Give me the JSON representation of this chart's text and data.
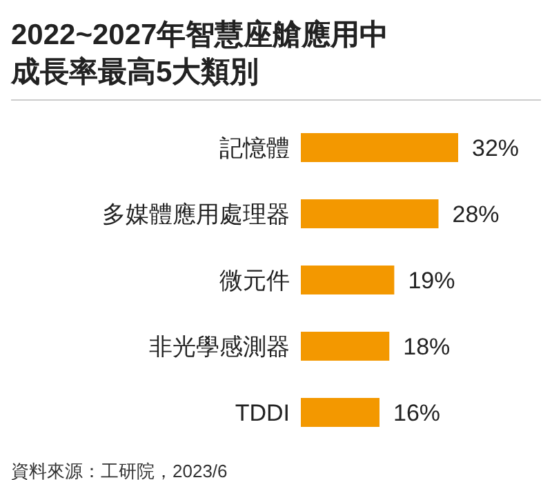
{
  "chart_data": {
    "type": "bar",
    "orientation": "horizontal",
    "title": "2022~2027年智慧座艙應用中成長率最高5大類別",
    "categories": [
      "記憶體",
      "多媒體應用處理器",
      "微元件",
      "非光學感測器",
      "TDDI"
    ],
    "values": [
      32,
      28,
      19,
      18,
      16
    ],
    "value_labels": [
      "32%",
      "28%",
      "19%",
      "18%",
      "16%"
    ],
    "color": "#f39800",
    "annotations": [
      "資料來源：工研院，2023/6"
    ]
  }
}
